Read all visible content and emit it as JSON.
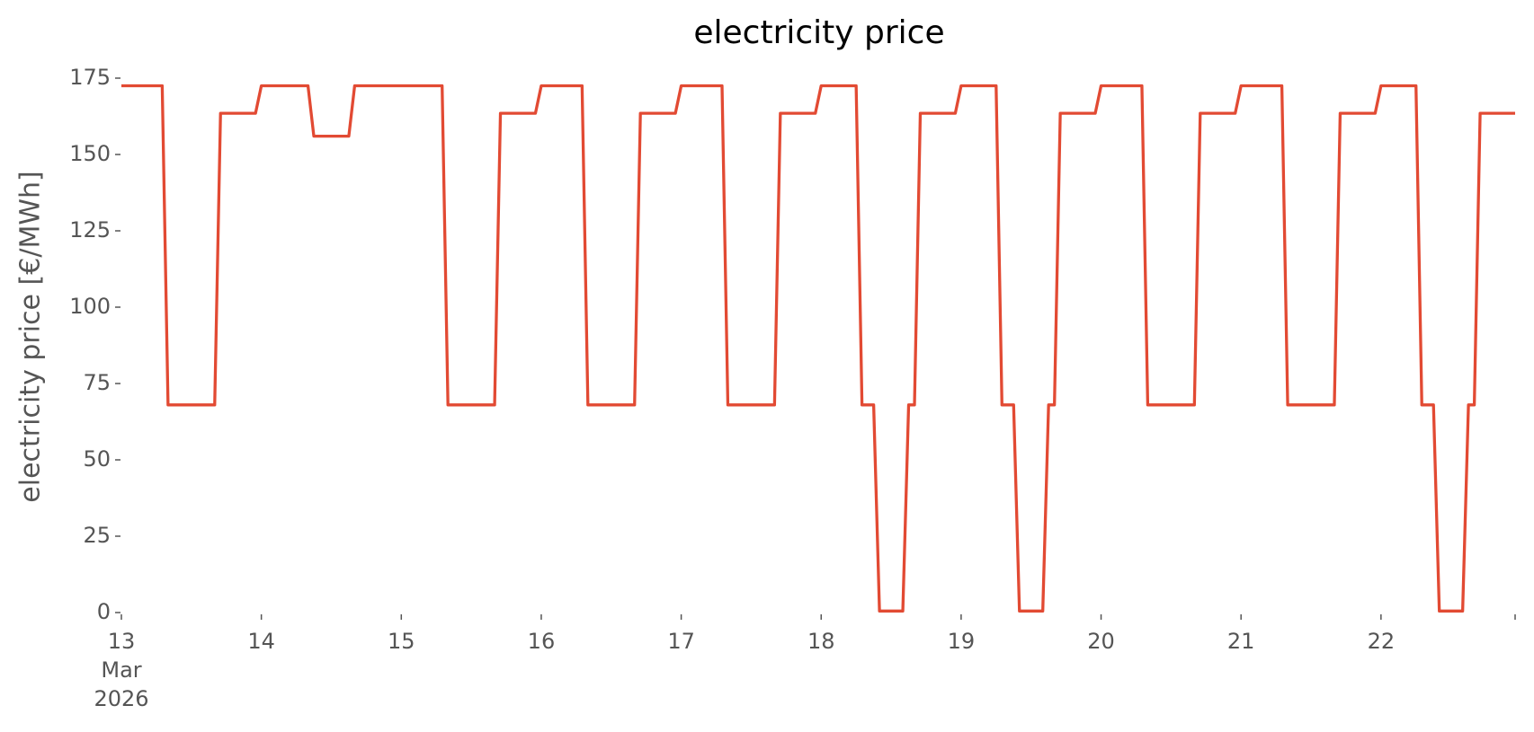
{
  "chart_data": {
    "type": "line",
    "title": "electricity price",
    "ylabel": "electricity price [€/MWh]",
    "x": [
      "2026-03-13T00:00",
      "2026-03-13T01:00",
      "2026-03-13T02:00",
      "2026-03-13T03:00",
      "2026-03-13T04:00",
      "2026-03-13T05:00",
      "2026-03-13T06:00",
      "2026-03-13T07:00",
      "2026-03-13T08:00",
      "2026-03-13T09:00",
      "2026-03-13T10:00",
      "2026-03-13T11:00",
      "2026-03-13T12:00",
      "2026-03-13T13:00",
      "2026-03-13T14:00",
      "2026-03-13T15:00",
      "2026-03-13T16:00",
      "2026-03-13T17:00",
      "2026-03-13T18:00",
      "2026-03-13T19:00",
      "2026-03-13T20:00",
      "2026-03-13T21:00",
      "2026-03-13T22:00",
      "2026-03-13T23:00",
      "2026-03-14T00:00",
      "2026-03-14T01:00",
      "2026-03-14T02:00",
      "2026-03-14T03:00",
      "2026-03-14T04:00",
      "2026-03-14T05:00",
      "2026-03-14T06:00",
      "2026-03-14T07:00",
      "2026-03-14T08:00",
      "2026-03-14T09:00",
      "2026-03-14T10:00",
      "2026-03-14T11:00",
      "2026-03-14T12:00",
      "2026-03-14T13:00",
      "2026-03-14T14:00",
      "2026-03-14T15:00",
      "2026-03-14T16:00",
      "2026-03-14T17:00",
      "2026-03-14T18:00",
      "2026-03-14T19:00",
      "2026-03-14T20:00",
      "2026-03-14T21:00",
      "2026-03-14T22:00",
      "2026-03-14T23:00",
      "2026-03-15T00:00",
      "2026-03-15T01:00",
      "2026-03-15T02:00",
      "2026-03-15T03:00",
      "2026-03-15T04:00",
      "2026-03-15T05:00",
      "2026-03-15T06:00",
      "2026-03-15T07:00",
      "2026-03-15T08:00",
      "2026-03-15T09:00",
      "2026-03-15T10:00",
      "2026-03-15T11:00",
      "2026-03-15T12:00",
      "2026-03-15T13:00",
      "2026-03-15T14:00",
      "2026-03-15T15:00",
      "2026-03-15T16:00",
      "2026-03-15T17:00",
      "2026-03-15T18:00",
      "2026-03-15T19:00",
      "2026-03-15T20:00",
      "2026-03-15T21:00",
      "2026-03-15T22:00",
      "2026-03-15T23:00",
      "2026-03-16T00:00",
      "2026-03-16T01:00",
      "2026-03-16T02:00",
      "2026-03-16T03:00",
      "2026-03-16T04:00",
      "2026-03-16T05:00",
      "2026-03-16T06:00",
      "2026-03-16T07:00",
      "2026-03-16T08:00",
      "2026-03-16T09:00",
      "2026-03-16T10:00",
      "2026-03-16T11:00",
      "2026-03-16T12:00",
      "2026-03-16T13:00",
      "2026-03-16T14:00",
      "2026-03-16T15:00",
      "2026-03-16T16:00",
      "2026-03-16T17:00",
      "2026-03-16T18:00",
      "2026-03-16T19:00",
      "2026-03-16T20:00",
      "2026-03-16T21:00",
      "2026-03-16T22:00",
      "2026-03-16T23:00",
      "2026-03-17T00:00",
      "2026-03-17T01:00",
      "2026-03-17T02:00",
      "2026-03-17T03:00",
      "2026-03-17T04:00",
      "2026-03-17T05:00",
      "2026-03-17T06:00",
      "2026-03-17T07:00",
      "2026-03-17T08:00",
      "2026-03-17T09:00",
      "2026-03-17T10:00",
      "2026-03-17T11:00",
      "2026-03-17T12:00",
      "2026-03-17T13:00",
      "2026-03-17T14:00",
      "2026-03-17T15:00",
      "2026-03-17T16:00",
      "2026-03-17T17:00",
      "2026-03-17T18:00",
      "2026-03-17T19:00",
      "2026-03-17T20:00",
      "2026-03-17T21:00",
      "2026-03-17T22:00",
      "2026-03-17T23:00",
      "2026-03-18T00:00",
      "2026-03-18T01:00",
      "2026-03-18T02:00",
      "2026-03-18T03:00",
      "2026-03-18T04:00",
      "2026-03-18T05:00",
      "2026-03-18T06:00",
      "2026-03-18T07:00",
      "2026-03-18T08:00",
      "2026-03-18T09:00",
      "2026-03-18T10:00",
      "2026-03-18T11:00",
      "2026-03-18T12:00",
      "2026-03-18T13:00",
      "2026-03-18T14:00",
      "2026-03-18T15:00",
      "2026-03-18T16:00",
      "2026-03-18T17:00",
      "2026-03-18T18:00",
      "2026-03-18T19:00",
      "2026-03-18T20:00",
      "2026-03-18T21:00",
      "2026-03-18T22:00",
      "2026-03-18T23:00",
      "2026-03-19T00:00",
      "2026-03-19T01:00",
      "2026-03-19T02:00",
      "2026-03-19T03:00",
      "2026-03-19T04:00",
      "2026-03-19T05:00",
      "2026-03-19T06:00",
      "2026-03-19T07:00",
      "2026-03-19T08:00",
      "2026-03-19T09:00",
      "2026-03-19T10:00",
      "2026-03-19T11:00",
      "2026-03-19T12:00",
      "2026-03-19T13:00",
      "2026-03-19T14:00",
      "2026-03-19T15:00",
      "2026-03-19T16:00",
      "2026-03-19T17:00",
      "2026-03-19T18:00",
      "2026-03-19T19:00",
      "2026-03-19T20:00",
      "2026-03-19T21:00",
      "2026-03-19T22:00",
      "2026-03-19T23:00",
      "2026-03-20T00:00",
      "2026-03-20T01:00",
      "2026-03-20T02:00",
      "2026-03-20T03:00",
      "2026-03-20T04:00",
      "2026-03-20T05:00",
      "2026-03-20T06:00",
      "2026-03-20T07:00",
      "2026-03-20T08:00",
      "2026-03-20T09:00",
      "2026-03-20T10:00",
      "2026-03-20T11:00",
      "2026-03-20T12:00",
      "2026-03-20T13:00",
      "2026-03-20T14:00",
      "2026-03-20T15:00",
      "2026-03-20T16:00",
      "2026-03-20T17:00",
      "2026-03-20T18:00",
      "2026-03-20T19:00",
      "2026-03-20T20:00",
      "2026-03-20T21:00",
      "2026-03-20T22:00",
      "2026-03-20T23:00",
      "2026-03-21T00:00",
      "2026-03-21T01:00",
      "2026-03-21T02:00",
      "2026-03-21T03:00",
      "2026-03-21T04:00",
      "2026-03-21T05:00",
      "2026-03-21T06:00",
      "2026-03-21T07:00",
      "2026-03-21T08:00",
      "2026-03-21T09:00",
      "2026-03-21T10:00",
      "2026-03-21T11:00",
      "2026-03-21T12:00",
      "2026-03-21T13:00",
      "2026-03-21T14:00",
      "2026-03-21T15:00",
      "2026-03-21T16:00",
      "2026-03-21T17:00",
      "2026-03-21T18:00",
      "2026-03-21T19:00",
      "2026-03-21T20:00",
      "2026-03-21T21:00",
      "2026-03-21T22:00",
      "2026-03-21T23:00",
      "2026-03-22T00:00",
      "2026-03-22T01:00",
      "2026-03-22T02:00",
      "2026-03-22T03:00",
      "2026-03-22T04:00",
      "2026-03-22T05:00",
      "2026-03-22T06:00",
      "2026-03-22T07:00",
      "2026-03-22T08:00",
      "2026-03-22T09:00",
      "2026-03-22T10:00",
      "2026-03-22T11:00",
      "2026-03-22T12:00",
      "2026-03-22T13:00",
      "2026-03-22T14:00",
      "2026-03-22T15:00",
      "2026-03-22T16:00",
      "2026-03-22T17:00",
      "2026-03-22T18:00",
      "2026-03-22T19:00",
      "2026-03-22T20:00",
      "2026-03-22T21:00",
      "2026-03-22T22:00",
      "2026-03-22T23:00"
    ],
    "series": [
      {
        "name": "electricity price",
        "color": "#e24a33",
        "values": [
          172.5,
          172.5,
          172.5,
          172.5,
          172.5,
          172.5,
          172.5,
          172.5,
          68,
          68,
          68,
          68,
          68,
          68,
          68,
          68,
          68,
          163.5,
          163.5,
          163.5,
          163.5,
          163.5,
          163.5,
          163.5,
          172.5,
          172.5,
          172.5,
          172.5,
          172.5,
          172.5,
          172.5,
          172.5,
          172.5,
          156,
          156,
          156,
          156,
          156,
          156,
          156,
          172.5,
          172.5,
          172.5,
          172.5,
          172.5,
          172.5,
          172.5,
          172.5,
          172.5,
          172.5,
          172.5,
          172.5,
          172.5,
          172.5,
          172.5,
          172.5,
          68,
          68,
          68,
          68,
          68,
          68,
          68,
          68,
          68,
          163.5,
          163.5,
          163.5,
          163.5,
          163.5,
          163.5,
          163.5,
          172.5,
          172.5,
          172.5,
          172.5,
          172.5,
          172.5,
          172.5,
          172.5,
          68,
          68,
          68,
          68,
          68,
          68,
          68,
          68,
          68,
          163.5,
          163.5,
          163.5,
          163.5,
          163.5,
          163.5,
          163.5,
          172.5,
          172.5,
          172.5,
          172.5,
          172.5,
          172.5,
          172.5,
          172.5,
          68,
          68,
          68,
          68,
          68,
          68,
          68,
          68,
          68,
          163.5,
          163.5,
          163.5,
          163.5,
          163.5,
          163.5,
          163.5,
          172.5,
          172.5,
          172.5,
          172.5,
          172.5,
          172.5,
          172.5,
          68,
          68,
          68,
          0.5,
          0.5,
          0.5,
          0.5,
          0.5,
          68,
          68,
          163.5,
          163.5,
          163.5,
          163.5,
          163.5,
          163.5,
          163.5,
          172.5,
          172.5,
          172.5,
          172.5,
          172.5,
          172.5,
          172.5,
          68,
          68,
          68,
          0.5,
          0.5,
          0.5,
          0.5,
          0.5,
          68,
          68,
          163.5,
          163.5,
          163.5,
          163.5,
          163.5,
          163.5,
          163.5,
          172.5,
          172.5,
          172.5,
          172.5,
          172.5,
          172.5,
          172.5,
          172.5,
          68,
          68,
          68,
          68,
          68,
          68,
          68,
          68,
          68,
          163.5,
          163.5,
          163.5,
          163.5,
          163.5,
          163.5,
          163.5,
          172.5,
          172.5,
          172.5,
          172.5,
          172.5,
          172.5,
          172.5,
          172.5,
          68,
          68,
          68,
          68,
          68,
          68,
          68,
          68,
          68,
          163.5,
          163.5,
          163.5,
          163.5,
          163.5,
          163.5,
          163.5,
          172.5,
          172.5,
          172.5,
          172.5,
          172.5,
          172.5,
          172.5,
          68,
          68,
          68,
          0.5,
          0.5,
          0.5,
          0.5,
          0.5,
          68,
          68,
          163.5,
          163.5,
          163.5,
          163.5,
          163.5,
          163.5,
          163.5
        ]
      }
    ],
    "xlim": [
      "2026-03-13T00:00",
      "2026-03-22T23:00"
    ],
    "xticks": [
      {
        "value": "2026-03-13",
        "label": "13\nMar\n2026"
      },
      {
        "value": "2026-03-14",
        "label": "14"
      },
      {
        "value": "2026-03-15",
        "label": "15"
      },
      {
        "value": "2026-03-16",
        "label": "16"
      },
      {
        "value": "2026-03-17",
        "label": "17"
      },
      {
        "value": "2026-03-18",
        "label": "18"
      },
      {
        "value": "2026-03-19",
        "label": "19"
      },
      {
        "value": "2026-03-20",
        "label": "20"
      },
      {
        "value": "2026-03-21",
        "label": "21"
      },
      {
        "value": "2026-03-22",
        "label": "22"
      }
    ],
    "ylim": [
      0,
      175
    ],
    "yticks": [
      0,
      25,
      50,
      75,
      100,
      125,
      150,
      175
    ],
    "grid": false
  }
}
